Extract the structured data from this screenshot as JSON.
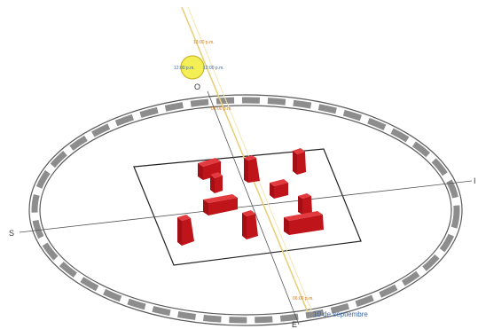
{
  "directions": {
    "north": "O",
    "south": "E",
    "east": "I",
    "west": "S"
  },
  "sun": {
    "time_top": "13:00 p.m.",
    "time_left": "12:00 p.m.",
    "time_right": "12:00 p.m.",
    "time_upper_mark": "08:00 p.m.",
    "time_lower_mark": "06:00 p.m."
  },
  "date_label": "10 de septiembre",
  "colors": {
    "building": "#c0141b",
    "sun_fill": "#f3ef55",
    "sun_path": "#e8d07a",
    "ring_dark": "#8d8d8d",
    "label_blue": "#3a66a8",
    "label_orange": "#d07a1c"
  }
}
